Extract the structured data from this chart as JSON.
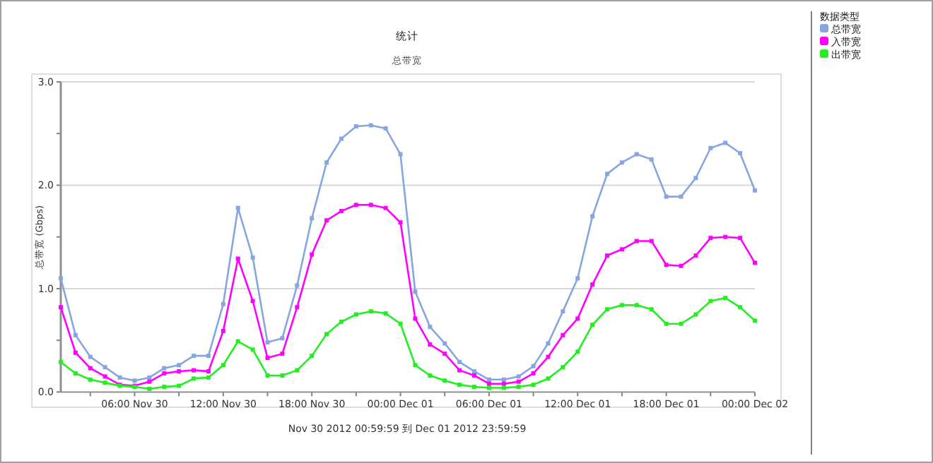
{
  "chart_data": {
    "type": "line",
    "title": "统计",
    "subtitle": "总带宽",
    "ylabel": "总带宽 (Gbps)",
    "legend_title": "数据类型",
    "annotations": [
      "Nov 30 2012 00:59:59 到 Dec 01 2012 23:59:59"
    ],
    "x": [
      "2012-11-30T01:00",
      "2012-11-30T02:00",
      "2012-11-30T03:00",
      "2012-11-30T04:00",
      "2012-11-30T05:00",
      "2012-11-30T06:00",
      "2012-11-30T07:00",
      "2012-11-30T08:00",
      "2012-11-30T09:00",
      "2012-11-30T10:00",
      "2012-11-30T11:00",
      "2012-11-30T12:00",
      "2012-11-30T13:00",
      "2012-11-30T14:00",
      "2012-11-30T15:00",
      "2012-11-30T16:00",
      "2012-11-30T17:00",
      "2012-11-30T18:00",
      "2012-11-30T19:00",
      "2012-11-30T20:00",
      "2012-11-30T21:00",
      "2012-11-30T22:00",
      "2012-11-30T23:00",
      "2012-12-01T00:00",
      "2012-12-01T01:00",
      "2012-12-01T02:00",
      "2012-12-01T03:00",
      "2012-12-01T04:00",
      "2012-12-01T05:00",
      "2012-12-01T06:00",
      "2012-12-01T07:00",
      "2012-12-01T08:00",
      "2012-12-01T09:00",
      "2012-12-01T10:00",
      "2012-12-01T11:00",
      "2012-12-01T12:00",
      "2012-12-01T13:00",
      "2012-12-01T14:00",
      "2012-12-01T15:00",
      "2012-12-01T16:00",
      "2012-12-01T17:00",
      "2012-12-01T18:00",
      "2012-12-01T19:00",
      "2012-12-01T20:00",
      "2012-12-01T21:00",
      "2012-12-01T22:00",
      "2012-12-01T23:00",
      "2012-12-02T00:00"
    ],
    "series": [
      {
        "name": "总带宽",
        "color": "#87a5e0",
        "values": [
          1.1,
          0.55,
          0.34,
          0.24,
          0.14,
          0.11,
          0.14,
          0.23,
          0.26,
          0.35,
          0.35,
          0.85,
          1.78,
          1.3,
          0.48,
          0.52,
          1.03,
          1.68,
          2.22,
          2.45,
          2.57,
          2.58,
          2.55,
          2.3,
          0.97,
          0.63,
          0.47,
          0.29,
          0.2,
          0.12,
          0.12,
          0.15,
          0.25,
          0.47,
          0.78,
          1.1,
          1.7,
          2.11,
          2.22,
          2.3,
          2.25,
          1.89,
          1.89,
          2.07,
          2.36,
          2.41,
          2.31,
          1.95
        ]
      },
      {
        "name": "入带宽",
        "color": "#ff00ff",
        "values": [
          0.82,
          0.38,
          0.23,
          0.15,
          0.07,
          0.06,
          0.1,
          0.18,
          0.2,
          0.21,
          0.2,
          0.59,
          1.29,
          0.88,
          0.33,
          0.37,
          0.82,
          1.33,
          1.66,
          1.75,
          1.81,
          1.81,
          1.78,
          1.64,
          0.71,
          0.46,
          0.37,
          0.21,
          0.16,
          0.08,
          0.08,
          0.1,
          0.18,
          0.34,
          0.55,
          0.71,
          1.04,
          1.32,
          1.38,
          1.46,
          1.46,
          1.23,
          1.22,
          1.32,
          1.49,
          1.5,
          1.49,
          1.25
        ]
      },
      {
        "name": "出带宽",
        "color": "#22ee22",
        "values": [
          0.29,
          0.18,
          0.12,
          0.09,
          0.06,
          0.05,
          0.03,
          0.05,
          0.06,
          0.13,
          0.14,
          0.26,
          0.49,
          0.41,
          0.16,
          0.16,
          0.21,
          0.35,
          0.56,
          0.68,
          0.75,
          0.78,
          0.76,
          0.66,
          0.26,
          0.16,
          0.11,
          0.07,
          0.05,
          0.04,
          0.04,
          0.05,
          0.07,
          0.13,
          0.24,
          0.39,
          0.65,
          0.8,
          0.84,
          0.84,
          0.8,
          0.66,
          0.66,
          0.75,
          0.88,
          0.91,
          0.82,
          0.69
        ]
      }
    ],
    "xlim": [
      "2012-11-30T01:00",
      "2012-12-02T00:00"
    ],
    "xticks": [
      {
        "value": "2012-11-30T03:00",
        "label": null
      },
      {
        "value": "2012-11-30T06:00",
        "label": "06:00 Nov 30"
      },
      {
        "value": "2012-11-30T09:00",
        "label": null
      },
      {
        "value": "2012-11-30T12:00",
        "label": "12:00 Nov 30"
      },
      {
        "value": "2012-11-30T15:00",
        "label": null
      },
      {
        "value": "2012-11-30T18:00",
        "label": "18:00 Nov 30"
      },
      {
        "value": "2012-11-30T21:00",
        "label": null
      },
      {
        "value": "2012-12-01T00:00",
        "label": "00:00 Dec 01"
      },
      {
        "value": "2012-12-01T03:00",
        "label": null
      },
      {
        "value": "2012-12-01T06:00",
        "label": "06:00 Dec 01"
      },
      {
        "value": "2012-12-01T09:00",
        "label": null
      },
      {
        "value": "2012-12-01T12:00",
        "label": "12:00 Dec 01"
      },
      {
        "value": "2012-12-01T15:00",
        "label": null
      },
      {
        "value": "2012-12-01T18:00",
        "label": "18:00 Dec 01"
      },
      {
        "value": "2012-12-01T21:00",
        "label": null
      },
      {
        "value": "2012-12-02T00:00",
        "label": "00:00 Dec 02"
      }
    ],
    "ylim": [
      0,
      3
    ],
    "yticks": [
      {
        "value": 0,
        "label": "0.0"
      },
      {
        "value": 0.5,
        "label": null
      },
      {
        "value": 1,
        "label": "1.0"
      },
      {
        "value": 1.5,
        "label": null
      },
      {
        "value": 2,
        "label": "2.0"
      },
      {
        "value": 2.5,
        "label": null
      },
      {
        "value": 3,
        "label": "3.0"
      }
    ],
    "grid": "y",
    "legend": "right",
    "marker": "square",
    "line_style": "solid"
  }
}
